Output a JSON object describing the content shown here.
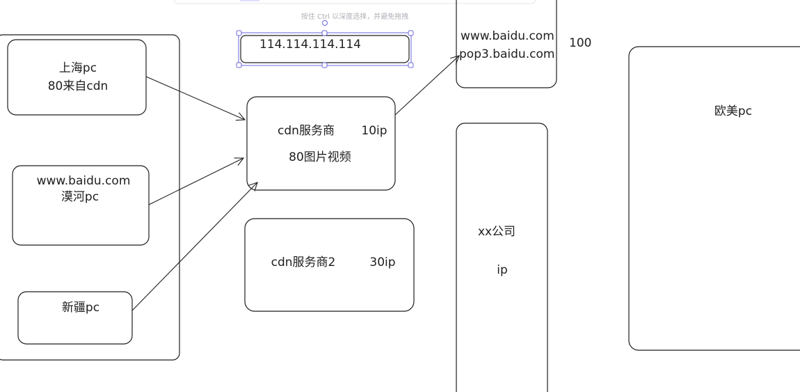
{
  "hint": "按住 Ctrl 以深度选择，并避免拖拽",
  "selected_text": "114.114.114.114",
  "nodes": [
    {
      "lines": [
        "上海pc",
        "80来自cdn"
      ]
    },
    {
      "lines": [
        "www.baidu.com",
        "漠河pc"
      ]
    },
    {
      "lines": [
        "新疆pc"
      ]
    },
    {
      "lines": [
        "cdn服务商",
        "10ip",
        "80图片视频"
      ]
    },
    {
      "lines": [
        "cdn服务商2",
        "30ip"
      ]
    },
    {
      "lines": [
        "www.baidu.com",
        "100",
        "pop3.baidu.com"
      ]
    },
    {
      "lines": [
        "xx公司",
        "ip"
      ]
    },
    {
      "lines": [
        "欧美pc"
      ]
    }
  ]
}
